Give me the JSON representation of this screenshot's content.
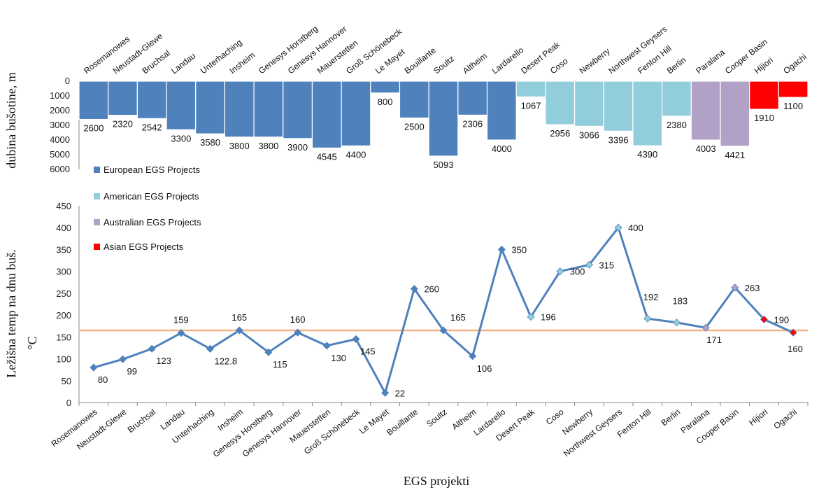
{
  "chart_data": [
    {
      "type": "bar",
      "categories": [
        "Rosemanowes",
        "Neustadt-Glewe",
        "Bruchsal",
        "Landau",
        "Unterhaching",
        "Insheim",
        "Genesys Horstberg",
        "Genesys Hannover",
        "Mauerstetten",
        "Groß Schönebeck",
        "Le Mayet",
        "Bouillante",
        "Soultz",
        "Altheim",
        "Lardarello",
        "Desert Peak",
        "Coso",
        "Newberry",
        "Northwest Geysers",
        "Fenton Hill",
        "Berlin",
        "Paralana",
        "Cooper Basin",
        "Hijiori",
        "Ogachi"
      ],
      "values": [
        2600,
        2320,
        2542,
        3300,
        3580,
        3800,
        3800,
        3900,
        4545,
        4400,
        800,
        2500,
        5093,
        2306,
        4000,
        1067,
        2956,
        3066,
        3396,
        4390,
        2380,
        4003,
        4421,
        1910,
        1100
      ],
      "groups": [
        "European",
        "European",
        "European",
        "European",
        "European",
        "European",
        "European",
        "European",
        "European",
        "European",
        "European",
        "European",
        "European",
        "European",
        "European",
        "American",
        "American",
        "American",
        "American",
        "American",
        "American",
        "Australian",
        "Australian",
        "Asian",
        "Asian"
      ],
      "ylabel": "dubina bušotine, m",
      "ylim": [
        0,
        6000
      ],
      "yticks": [
        0,
        1000,
        2000,
        3000,
        4000,
        5000,
        6000
      ],
      "y_inverted": true
    },
    {
      "type": "line",
      "categories": [
        "Rosemanowes",
        "Neustadt-Glewe",
        "Bruchsal",
        "Landau",
        "Unterhaching",
        "Insheim",
        "Genesys Horstberg",
        "Genesys Hannover",
        "Mauerstetten",
        "Groß Schönebeck",
        "Le Mayet",
        "Bouillante",
        "Soultz",
        "Altheim",
        "Lardarello",
        "Desert Peak",
        "Coso",
        "Newberry",
        "Northwest Geysers",
        "Fenton Hill",
        "Berlin",
        "Paralana",
        "Cooper Basin",
        "Hijiori",
        "Ogachi"
      ],
      "values": [
        80,
        99,
        123,
        159,
        122.8,
        165,
        115,
        160,
        130,
        145,
        22,
        260,
        165,
        106,
        350,
        196,
        300,
        315,
        400,
        192,
        183,
        171,
        263,
        190,
        160
      ],
      "labels": [
        "80",
        "99",
        "123",
        "159",
        "122.8",
        "165",
        "115",
        "160",
        "130",
        "145",
        "22",
        "260",
        "165",
        "106",
        "350",
        "196",
        "300",
        "315",
        "400",
        "192",
        "183",
        "171",
        "263",
        "190",
        "160"
      ],
      "reference_line": 165,
      "ylabel": "Ležišna temp na dnu buš.",
      "yunit": "°C",
      "xlabel": "EGS projekti",
      "ylim": [
        0,
        450
      ],
      "yticks": [
        0,
        50,
        100,
        150,
        200,
        250,
        300,
        350,
        400,
        450
      ]
    }
  ],
  "legend": [
    {
      "label": "European EGS Projects",
      "color": "#4f81bd"
    },
    {
      "label": "American EGS Projects",
      "color": "#92cddc"
    },
    {
      "label": "Australian EGS Projects",
      "color": "#b2a1c7"
    },
    {
      "label": "Asian EGS Projects",
      "color": "#ff0000"
    }
  ],
  "group_colors": {
    "European": "#4f81bd",
    "American": "#92cddc",
    "Australian": "#b2a1c7",
    "Asian": "#ff0000"
  },
  "line_color": "#4f81bd",
  "reference_color": "#f4b183"
}
